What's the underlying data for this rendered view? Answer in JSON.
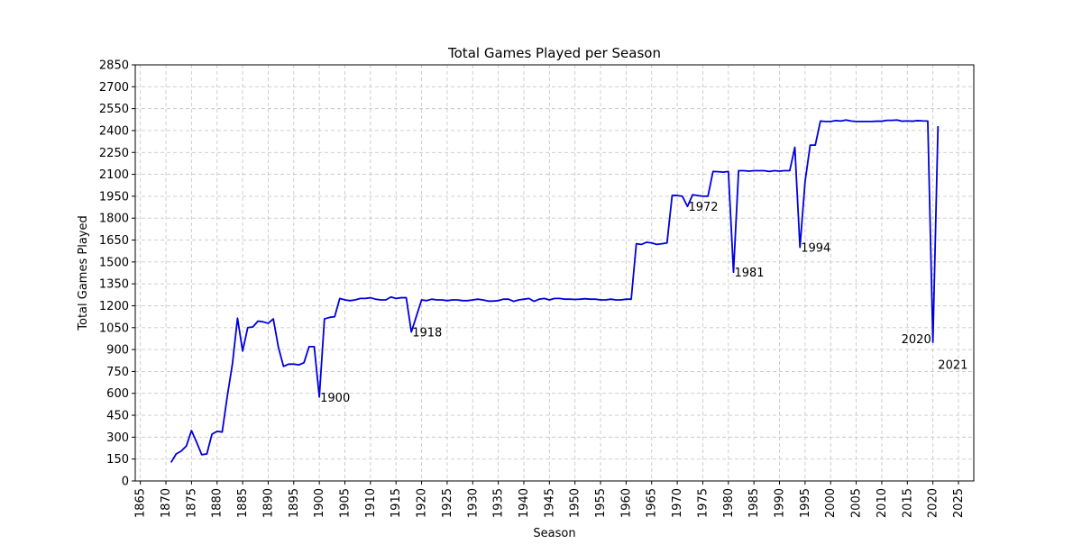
{
  "chart_data": {
    "type": "line",
    "title": "Total Games Played per Season",
    "xlabel": "Season",
    "ylabel": "Total Games Played",
    "xlim": [
      1864,
      2028
    ],
    "ylim": [
      0,
      2850
    ],
    "x_ticks": [
      1865,
      1870,
      1875,
      1880,
      1885,
      1890,
      1895,
      1900,
      1905,
      1910,
      1915,
      1920,
      1925,
      1930,
      1935,
      1940,
      1945,
      1950,
      1955,
      1960,
      1965,
      1970,
      1975,
      1980,
      1985,
      1990,
      1995,
      2000,
      2005,
      2010,
      2015,
      2020,
      2025
    ],
    "y_ticks": [
      0,
      150,
      300,
      450,
      600,
      750,
      900,
      1050,
      1200,
      1350,
      1500,
      1650,
      1800,
      1950,
      2100,
      2250,
      2400,
      2550,
      2700,
      2850
    ],
    "grid": true,
    "colors": {
      "line": "#0000dd"
    },
    "series": [
      {
        "x": [
          1871,
          1872,
          1873,
          1874,
          1875,
          1876,
          1877,
          1878,
          1879,
          1880,
          1881,
          1882,
          1883,
          1884,
          1885,
          1886,
          1887,
          1888,
          1889,
          1890,
          1891,
          1892,
          1893,
          1894,
          1895,
          1896,
          1897,
          1898,
          1899,
          1900,
          1901,
          1902,
          1903,
          1904,
          1905,
          1906,
          1907,
          1908,
          1909,
          1910,
          1911,
          1912,
          1913,
          1914,
          1915,
          1916,
          1917,
          1918,
          1919,
          1920,
          1921,
          1922,
          1923,
          1924,
          1925,
          1926,
          1927,
          1928,
          1929,
          1930,
          1931,
          1932,
          1933,
          1934,
          1935,
          1936,
          1937,
          1938,
          1939,
          1940,
          1941,
          1942,
          1943,
          1944,
          1945,
          1946,
          1947,
          1948,
          1949,
          1950,
          1951,
          1952,
          1953,
          1954,
          1955,
          1956,
          1957,
          1958,
          1959,
          1960,
          1961,
          1962,
          1963,
          1964,
          1965,
          1966,
          1967,
          1968,
          1969,
          1970,
          1971,
          1972,
          1973,
          1974,
          1975,
          1976,
          1977,
          1978,
          1979,
          1980,
          1981,
          1982,
          1983,
          1984,
          1985,
          1986,
          1987,
          1988,
          1989,
          1990,
          1991,
          1992,
          1993,
          1994,
          1995,
          1996,
          1997,
          1998,
          1999,
          2000,
          2001,
          2002,
          2003,
          2004,
          2005,
          2006,
          2007,
          2008,
          2009,
          2010,
          2011,
          2012,
          2013,
          2014,
          2015,
          2016,
          2017,
          2018,
          2019,
          2020,
          2021
        ],
        "values": [
          127,
          185,
          205,
          240,
          345,
          265,
          180,
          185,
          320,
          340,
          335,
          580,
          800,
          1115,
          890,
          1050,
          1055,
          1095,
          1090,
          1080,
          1110,
          915,
          785,
          800,
          800,
          795,
          810,
          920,
          920,
          575,
          1110,
          1120,
          1125,
          1250,
          1240,
          1235,
          1240,
          1250,
          1250,
          1255,
          1245,
          1240,
          1240,
          1260,
          1250,
          1255,
          1255,
          1020,
          1130,
          1240,
          1235,
          1245,
          1240,
          1240,
          1235,
          1240,
          1240,
          1235,
          1235,
          1240,
          1245,
          1240,
          1232,
          1232,
          1235,
          1245,
          1245,
          1230,
          1240,
          1245,
          1250,
          1230,
          1245,
          1250,
          1240,
          1250,
          1250,
          1245,
          1245,
          1243,
          1245,
          1248,
          1245,
          1245,
          1240,
          1240,
          1245,
          1240,
          1240,
          1245,
          1245,
          1625,
          1620,
          1635,
          1630,
          1620,
          1625,
          1630,
          1955,
          1955,
          1950,
          1880,
          1960,
          1955,
          1950,
          1950,
          2120,
          2118,
          2115,
          2120,
          1430,
          2125,
          2125,
          2122,
          2125,
          2125,
          2125,
          2120,
          2125,
          2122,
          2125,
          2125,
          2285,
          1600,
          2050,
          2300,
          2300,
          2465,
          2462,
          2462,
          2468,
          2465,
          2472,
          2465,
          2462,
          2462,
          2462,
          2462,
          2464,
          2464,
          2470,
          2470,
          2472,
          2464,
          2466,
          2464,
          2468,
          2466,
          2465,
          950,
          2430
        ]
      }
    ],
    "annotations": [
      {
        "text": "1900",
        "x": 1900,
        "y": 575
      },
      {
        "text": "1918",
        "x": 1918,
        "y": 1020
      },
      {
        "text": "1972",
        "x": 1972,
        "y": 1880
      },
      {
        "text": "1981",
        "x": 1981,
        "y": 1430
      },
      {
        "text": "1994",
        "x": 1994,
        "y": 1600
      },
      {
        "text": "2020",
        "x": 2020,
        "y": 950
      },
      {
        "text": "2021",
        "x": 2021,
        "y": 2430
      }
    ]
  }
}
